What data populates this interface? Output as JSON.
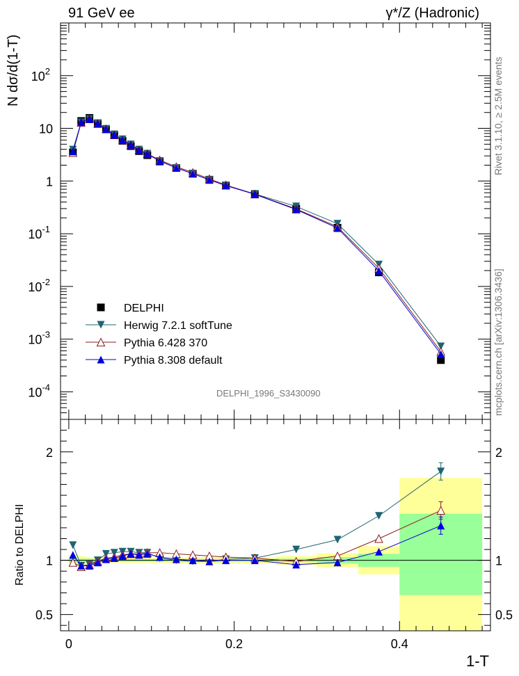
{
  "header": {
    "left": "91 GeV ee",
    "right": "γ*/Z (Hadronic)"
  },
  "side_labels": {
    "rivet": "Rivet 3.1.10, ≥ 2.5M events",
    "mcplots": "mcplots.cern.ch [arXiv:1306.3436]"
  },
  "watermark": "DELPHI_1996_S3430090",
  "colors": {
    "DELPHI": "#000000",
    "herwig": "#1e6572",
    "pythia6": "#8b1a1a",
    "pythia8": "#0000dd",
    "band_yellow": "#ffff99",
    "band_green": "#99ff99"
  },
  "chart_data": [
    {
      "type": "scatter",
      "ylabel": "N dσ/d(1-T)",
      "xlabel": "",
      "yscale": "log",
      "ylim": [
        3e-05,
        1000
      ],
      "xlim": [
        -0.01,
        0.51
      ],
      "yticks": [
        {
          "value": 0.0001,
          "label": "10",
          "exp": "-4"
        },
        {
          "value": 0.001,
          "label": "10",
          "exp": "-3"
        },
        {
          "value": 0.01,
          "label": "10",
          "exp": "-2"
        },
        {
          "value": 0.1,
          "label": "10",
          "exp": "-1"
        },
        {
          "value": 1,
          "label": "1",
          "exp": ""
        },
        {
          "value": 10,
          "label": "10",
          "exp": ""
        },
        {
          "value": 100,
          "label": "10",
          "exp": "2"
        }
      ],
      "x": [
        0.005,
        0.015,
        0.025,
        0.035,
        0.045,
        0.055,
        0.065,
        0.075,
        0.085,
        0.095,
        0.11,
        0.13,
        0.15,
        0.17,
        0.19,
        0.225,
        0.275,
        0.325,
        0.375,
        0.45
      ],
      "series": [
        {
          "name": "DELPHI",
          "marker": "square",
          "values": [
            3.5,
            13.8,
            15.8,
            12.5,
            9.6,
            7.4,
            5.8,
            4.6,
            3.7,
            3.1,
            2.35,
            1.77,
            1.38,
            1.06,
            0.82,
            0.56,
            0.3,
            0.13,
            0.0185,
            0.0004
          ]
        },
        {
          "name": "Herwig 7.2.1 softTune",
          "marker": "triangle-down",
          "values": [
            3.95,
            13.0,
            15.1,
            12.4,
            9.8,
            7.7,
            6.2,
            4.95,
            3.95,
            3.3,
            2.4,
            1.77,
            1.38,
            1.05,
            0.83,
            0.57,
            0.33,
            0.155,
            0.026,
            0.00073
          ]
        },
        {
          "name": "Pythia 6.428 370",
          "marker": "triangle-up-open",
          "values": [
            3.45,
            12.9,
            15.1,
            12.3,
            9.7,
            7.5,
            6.0,
            4.85,
            3.9,
            3.3,
            2.5,
            1.87,
            1.45,
            1.1,
            0.84,
            0.565,
            0.296,
            0.135,
            0.0222,
            0.00058
          ]
        },
        {
          "name": "Pythia 8.308 default",
          "marker": "triangle-up",
          "values": [
            3.65,
            13.1,
            15.0,
            12.2,
            9.6,
            7.5,
            6.0,
            4.85,
            3.85,
            3.25,
            2.4,
            1.78,
            1.38,
            1.05,
            0.82,
            0.56,
            0.288,
            0.128,
            0.0198,
            0.00052
          ]
        }
      ]
    },
    {
      "type": "scatter",
      "ylabel": "Ratio to DELPHI",
      "xlabel": "1-T",
      "ylim": [
        0.35,
        2.3
      ],
      "xlim": [
        -0.01,
        0.51
      ],
      "yticks": [
        0.5,
        1,
        2
      ],
      "xticks": [
        0,
        0.2,
        0.4
      ],
      "xtick_labels": [
        "0",
        "0.2",
        "0.4"
      ],
      "bins": [
        0,
        0.01,
        0.02,
        0.03,
        0.04,
        0.05,
        0.06,
        0.07,
        0.08,
        0.09,
        0.1,
        0.12,
        0.14,
        0.16,
        0.18,
        0.2,
        0.25,
        0.3,
        0.35,
        0.4,
        0.5
      ],
      "band_yellow": [
        [
          0.95,
          1.05
        ],
        [
          0.96,
          1.04
        ],
        [
          0.97,
          1.03
        ],
        [
          0.975,
          1.025
        ],
        [
          0.975,
          1.025
        ],
        [
          0.975,
          1.025
        ],
        [
          0.975,
          1.025
        ],
        [
          0.975,
          1.025
        ],
        [
          0.975,
          1.025
        ],
        [
          0.975,
          1.025
        ],
        [
          0.975,
          1.025
        ],
        [
          0.97,
          1.03
        ],
        [
          0.97,
          1.03
        ],
        [
          0.97,
          1.03
        ],
        [
          0.97,
          1.03
        ],
        [
          0.97,
          1.03
        ],
        [
          0.96,
          1.04
        ],
        [
          0.935,
          1.065
        ],
        [
          0.87,
          1.13
        ],
        [
          0.25,
          1.76
        ]
      ],
      "band_green": [
        [
          0.98,
          1.02
        ],
        [
          0.985,
          1.015
        ],
        [
          0.985,
          1.015
        ],
        [
          0.99,
          1.01
        ],
        [
          0.99,
          1.01
        ],
        [
          0.99,
          1.01
        ],
        [
          0.99,
          1.01
        ],
        [
          0.99,
          1.01
        ],
        [
          0.99,
          1.01
        ],
        [
          0.99,
          1.01
        ],
        [
          0.99,
          1.01
        ],
        [
          0.99,
          1.01
        ],
        [
          0.99,
          1.01
        ],
        [
          0.99,
          1.01
        ],
        [
          0.99,
          1.01
        ],
        [
          0.99,
          1.01
        ],
        [
          0.985,
          1.015
        ],
        [
          0.97,
          1.03
        ],
        [
          0.94,
          1.06
        ],
        [
          0.68,
          1.43
        ]
      ],
      "x": [
        0.005,
        0.015,
        0.025,
        0.035,
        0.045,
        0.055,
        0.065,
        0.075,
        0.085,
        0.095,
        0.11,
        0.13,
        0.15,
        0.17,
        0.19,
        0.225,
        0.275,
        0.325,
        0.375,
        0.45
      ],
      "series": [
        {
          "name": "Herwig 7.2.1 softTune",
          "values": [
            1.14,
            0.95,
            0.96,
            1.0,
            1.06,
            1.07,
            1.08,
            1.08,
            1.07,
            1.07,
            1.02,
            1.0,
            0.99,
            0.99,
            1.01,
            1.02,
            1.1,
            1.19,
            1.41,
            1.82
          ],
          "err": [
            0.03,
            0.01,
            0.01,
            0.01,
            0.01,
            0.01,
            0.01,
            0.01,
            0.01,
            0.01,
            0.01,
            0.01,
            0.01,
            0.01,
            0.01,
            0.01,
            0.01,
            0.01,
            0.02,
            0.08
          ]
        },
        {
          "name": "Pythia 6.428 370",
          "values": [
            0.98,
            0.94,
            0.96,
            0.99,
            1.02,
            1.03,
            1.05,
            1.06,
            1.06,
            1.07,
            1.07,
            1.06,
            1.05,
            1.04,
            1.03,
            1.02,
            0.99,
            1.04,
            1.2,
            1.46
          ],
          "err": [
            0.03,
            0.01,
            0.01,
            0.01,
            0.01,
            0.01,
            0.01,
            0.01,
            0.01,
            0.01,
            0.01,
            0.01,
            0.01,
            0.01,
            0.01,
            0.01,
            0.01,
            0.01,
            0.02,
            0.08
          ]
        },
        {
          "name": "Pythia 8.308 default",
          "values": [
            1.05,
            0.95,
            0.95,
            0.98,
            1.01,
            1.02,
            1.04,
            1.06,
            1.05,
            1.06,
            1.03,
            1.01,
            1.0,
            0.99,
            1.0,
            1.0,
            0.96,
            0.98,
            1.08,
            1.32
          ],
          "err": [
            0.03,
            0.01,
            0.01,
            0.01,
            0.01,
            0.01,
            0.01,
            0.01,
            0.01,
            0.01,
            0.01,
            0.01,
            0.01,
            0.01,
            0.01,
            0.01,
            0.01,
            0.01,
            0.02,
            0.08
          ]
        }
      ]
    }
  ]
}
